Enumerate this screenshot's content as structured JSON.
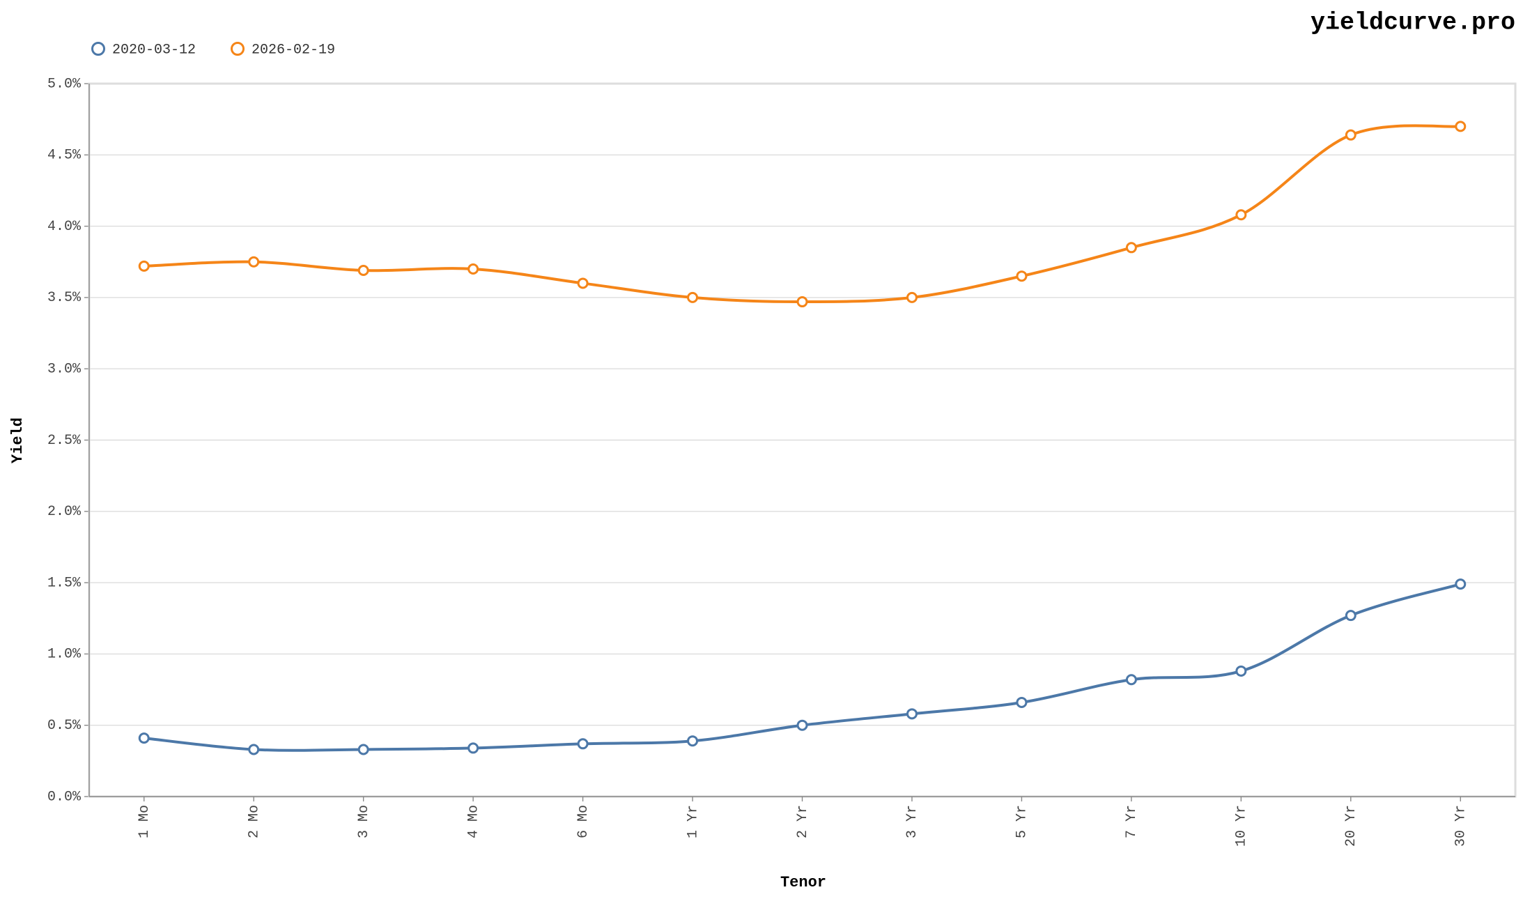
{
  "chart_data": {
    "type": "line",
    "title": "yieldcurve.pro",
    "x_label": "Tenor",
    "y_label": "Yield",
    "categories": [
      "1 Mo",
      "2 Mo",
      "3 Mo",
      "4 Mo",
      "6 Mo",
      "1 Yr",
      "2 Yr",
      "3 Yr",
      "5 Yr",
      "7 Yr",
      "10 Yr",
      "20 Yr",
      "30 Yr"
    ],
    "series": [
      {
        "name": "2020-03-12",
        "color": "#4c78a8",
        "values": [
          0.41,
          0.33,
          0.33,
          0.34,
          0.37,
          0.39,
          0.5,
          0.58,
          0.66,
          0.82,
          0.88,
          1.27,
          1.49
        ]
      },
      {
        "name": "2026-02-19",
        "color": "#f58518",
        "values": [
          3.72,
          3.75,
          3.69,
          3.7,
          3.6,
          3.5,
          3.47,
          3.5,
          3.65,
          3.85,
          4.08,
          4.64,
          4.7
        ]
      }
    ],
    "ylim": [
      0,
      5
    ],
    "yticks": [
      {
        "value": 0,
        "label": "0.0%"
      },
      {
        "value": 0.5,
        "label": "0.5%"
      },
      {
        "value": 1,
        "label": "1.0%"
      },
      {
        "value": 1.5,
        "label": "1.5%"
      },
      {
        "value": 2,
        "label": "2.0%"
      },
      {
        "value": 2.5,
        "label": "2.5%"
      },
      {
        "value": 3,
        "label": "3.0%"
      },
      {
        "value": 3.5,
        "label": "3.5%"
      },
      {
        "value": 4,
        "label": "4.0%"
      },
      {
        "value": 4.5,
        "label": "4.5%"
      },
      {
        "value": 5,
        "label": "5.0%"
      }
    ],
    "grid": true,
    "legend": "top-left"
  }
}
